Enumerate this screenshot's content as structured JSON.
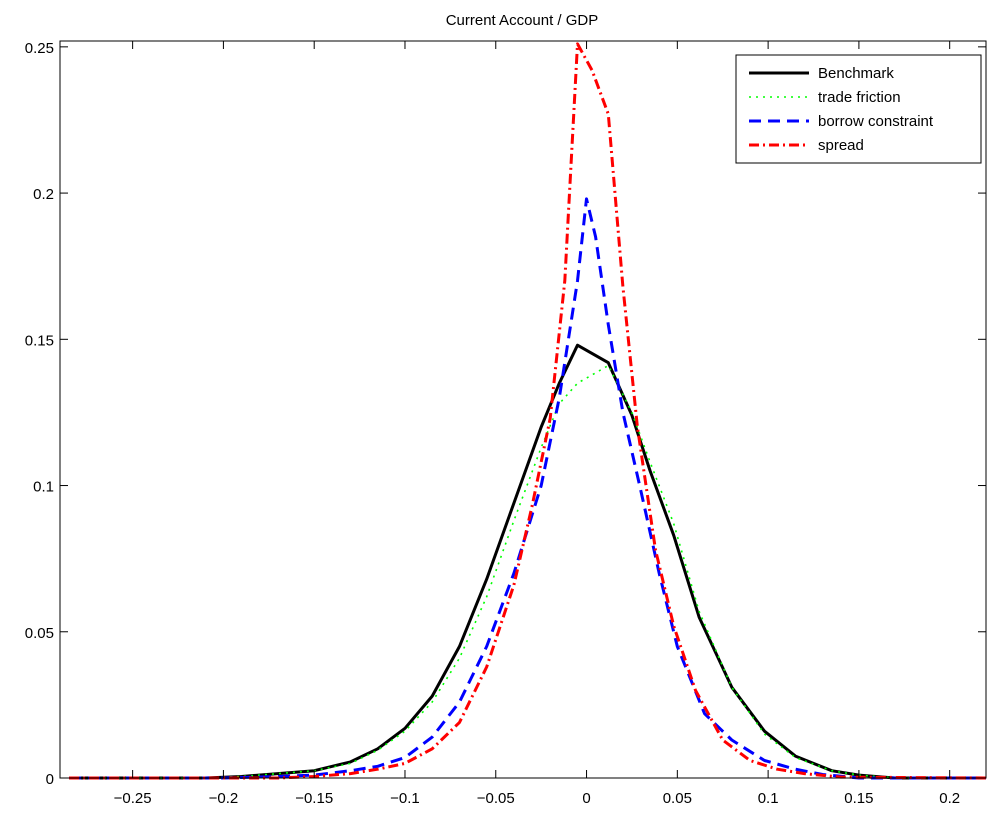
{
  "chart_data": {
    "type": "line",
    "title": "Current Account / GDP",
    "xlabel": "",
    "ylabel": "",
    "xlim": [
      -0.29,
      0.22
    ],
    "ylim": [
      0,
      0.252
    ],
    "xticks": [
      -0.25,
      -0.2,
      -0.15,
      -0.1,
      -0.05,
      0,
      0.05,
      0.1,
      0.15,
      0.2
    ],
    "xtick_labels": [
      "−0.25",
      "−0.2",
      "−0.15",
      "−0.1",
      "−0.05",
      "0",
      "0.05",
      "0.1",
      "0.15",
      "0.2"
    ],
    "yticks": [
      0,
      0.05,
      0.1,
      0.15,
      0.2,
      0.25
    ],
    "ytick_labels": [
      "0",
      "0.05",
      "0.1",
      "0.15",
      "0.2",
      "0.25"
    ],
    "grid": false,
    "legend_position": "top-right",
    "series": [
      {
        "name": "Benchmark",
        "color": "#000000",
        "style": "solid",
        "x": [
          -0.285,
          -0.27,
          -0.25,
          -0.23,
          -0.21,
          -0.19,
          -0.17,
          -0.15,
          -0.13,
          -0.115,
          -0.1,
          -0.085,
          -0.07,
          -0.055,
          -0.04,
          -0.025,
          -0.015,
          -0.005,
          0.012,
          0.025,
          0.035,
          0.048,
          0.062,
          0.08,
          0.098,
          0.115,
          0.135,
          0.15,
          0.17,
          0.2,
          0.22
        ],
        "y": [
          0,
          0,
          0,
          0,
          0,
          0.0005,
          0.0015,
          0.0025,
          0.0055,
          0.01,
          0.017,
          0.028,
          0.045,
          0.068,
          0.094,
          0.12,
          0.135,
          0.148,
          0.142,
          0.124,
          0.105,
          0.083,
          0.055,
          0.031,
          0.016,
          0.0075,
          0.0025,
          0.001,
          0,
          0,
          0
        ]
      },
      {
        "name": "trade friction",
        "color": "#00ff00",
        "style": "dotted",
        "x": [
          -0.285,
          -0.25,
          -0.21,
          -0.19,
          -0.17,
          -0.15,
          -0.13,
          -0.115,
          -0.1,
          -0.085,
          -0.07,
          -0.055,
          -0.04,
          -0.025,
          -0.015,
          -0.005,
          0.012,
          0.025,
          0.035,
          0.048,
          0.062,
          0.08,
          0.098,
          0.115,
          0.135,
          0.15,
          0.17,
          0.22
        ],
        "y": [
          0,
          0,
          0,
          0.0005,
          0.0015,
          0.0025,
          0.005,
          0.0095,
          0.016,
          0.026,
          0.041,
          0.062,
          0.088,
          0.113,
          0.128,
          0.135,
          0.141,
          0.125,
          0.108,
          0.087,
          0.057,
          0.031,
          0.015,
          0.007,
          0.0025,
          0.001,
          0,
          0
        ]
      },
      {
        "name": "borrow constraint",
        "color": "#0000ff",
        "style": "dashed",
        "x": [
          -0.285,
          -0.25,
          -0.2,
          -0.17,
          -0.15,
          -0.13,
          -0.115,
          -0.1,
          -0.085,
          -0.07,
          -0.055,
          -0.04,
          -0.025,
          -0.015,
          -0.005,
          0,
          0.005,
          0.012,
          0.02,
          0.03,
          0.04,
          0.05,
          0.065,
          0.08,
          0.098,
          0.115,
          0.13,
          0.15,
          0.22
        ],
        "y": [
          0,
          0,
          0,
          0.0005,
          0.001,
          0.0025,
          0.004,
          0.007,
          0.014,
          0.026,
          0.045,
          0.07,
          0.1,
          0.13,
          0.17,
          0.198,
          0.185,
          0.155,
          0.125,
          0.098,
          0.07,
          0.045,
          0.022,
          0.013,
          0.006,
          0.003,
          0.0012,
          0,
          0
        ]
      },
      {
        "name": "spread",
        "color": "#ff0000",
        "style": "dashdot",
        "x": [
          -0.285,
          -0.25,
          -0.2,
          -0.17,
          -0.15,
          -0.13,
          -0.115,
          -0.1,
          -0.085,
          -0.07,
          -0.055,
          -0.04,
          -0.03,
          -0.02,
          -0.012,
          -0.005,
          0.003,
          0.012,
          0.02,
          0.028,
          0.038,
          0.048,
          0.06,
          0.075,
          0.09,
          0.105,
          0.12,
          0.14,
          0.22
        ],
        "y": [
          0,
          0,
          0,
          0,
          0.0005,
          0.0015,
          0.003,
          0.005,
          0.01,
          0.019,
          0.038,
          0.066,
          0.093,
          0.123,
          0.17,
          0.251,
          0.242,
          0.227,
          0.168,
          0.12,
          0.078,
          0.052,
          0.03,
          0.013,
          0.006,
          0.003,
          0.0015,
          0.0003,
          0
        ]
      }
    ]
  }
}
